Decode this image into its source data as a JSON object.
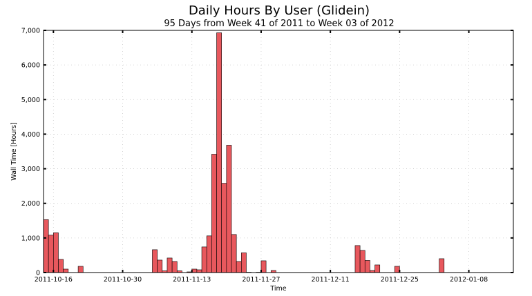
{
  "chart_data": {
    "type": "bar",
    "title": "Daily Hours By User (Glidein)",
    "subtitle": "95 Days from Week 41 of 2011 to Week 03 of 2012",
    "xlabel": "Time",
    "ylabel": "Wall Time [Hours]",
    "start_date": "2011-10-14",
    "end_date": "2012-01-17",
    "ylim": [
      0,
      7000
    ],
    "yticks": [
      0,
      1000,
      2000,
      3000,
      4000,
      5000,
      6000,
      7000
    ],
    "ytick_labels": [
      "0",
      "1,000",
      "2,000",
      "3,000",
      "4,000",
      "5,000",
      "6,000",
      "7,000"
    ],
    "xtick_labels": [
      "2011-10-16",
      "2011-10-30",
      "2011-11-13",
      "2011-11-27",
      "2011-12-11",
      "2011-12-25",
      "2012-01-08"
    ],
    "grid": true,
    "bar_color": "#e8585d",
    "bar_edge_color": "#000000",
    "dates": [
      "2011-10-14",
      "2011-10-15",
      "2011-10-16",
      "2011-10-17",
      "2011-10-18",
      "2011-10-21",
      "2011-11-05",
      "2011-11-06",
      "2011-11-07",
      "2011-11-08",
      "2011-11-09",
      "2011-11-10",
      "2011-11-12",
      "2011-11-13",
      "2011-11-14",
      "2011-11-15",
      "2011-11-16",
      "2011-11-17",
      "2011-11-18",
      "2011-11-19",
      "2011-11-20",
      "2011-11-21",
      "2011-11-22",
      "2011-11-23",
      "2011-11-24",
      "2011-11-26",
      "2011-11-27",
      "2011-11-29",
      "2011-12-16",
      "2011-12-17",
      "2011-12-18",
      "2011-12-19",
      "2011-12-20",
      "2011-12-24",
      "2012-01-02"
    ],
    "values": [
      1530,
      1080,
      1150,
      380,
      100,
      180,
      660,
      360,
      50,
      420,
      320,
      50,
      20,
      100,
      80,
      740,
      1060,
      3420,
      6930,
      2580,
      3680,
      1100,
      320,
      570,
      10,
      10,
      340,
      60,
      780,
      640,
      350,
      60,
      220,
      180,
      400
    ]
  }
}
